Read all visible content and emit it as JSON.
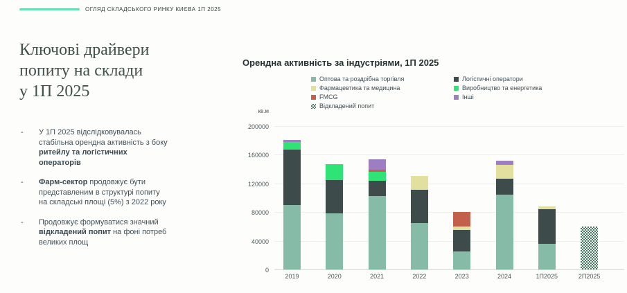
{
  "header": {
    "title": "ОГЛЯД СКЛАДСЬКОГО РИНКУ КИЄВА 1П 2025",
    "accent_line_color": "#63DFB2"
  },
  "sidebar": {
    "title_lines": [
      "Ключові драйвери",
      "попиту на склади",
      "у 1П 2025"
    ],
    "bullet_marker": "-",
    "bullets": [
      {
        "parts": [
          {
            "text": "У 1П 2025 відслідковувалась стабільна орендна активність з боку ",
            "bold": false
          },
          {
            "text": "ритейлу та логістичних операторів",
            "bold": true
          }
        ]
      },
      {
        "parts": [
          {
            "text": "Фарм-сектор",
            "bold": true
          },
          {
            "text": " продовжує бути представленим в структурі попиту на складські площі (5%) з 2022 року",
            "bold": false
          }
        ]
      },
      {
        "parts": [
          {
            "text": "Продовжує формуватися значний ",
            "bold": false
          },
          {
            "text": "відкладений попит",
            "bold": true
          },
          {
            "text": " на фоні потреб великих площ",
            "bold": false
          }
        ]
      }
    ]
  },
  "chart_data": {
    "type": "bar",
    "stacked": true,
    "title": "Орендна активність за індустріями, 1П 2025",
    "xlabel": "",
    "ylabel": "кв.м",
    "ylim": [
      0,
      200000
    ],
    "y_ticks": [
      0,
      40000,
      80000,
      120000,
      160000,
      200000
    ],
    "grid": true,
    "legend_position": "top",
    "categories": [
      "2019",
      "2020",
      "2021",
      "2022",
      "2023",
      "2024",
      "1П2025",
      "2П2025"
    ],
    "series": [
      {
        "name": "Оптова та роздрібна торгівля",
        "color": "#86BCA7",
        "pattern": false,
        "values": [
          90000,
          78000,
          102000,
          65000,
          25000,
          104000,
          36000,
          0
        ]
      },
      {
        "name": "Логістичні оператори",
        "color": "#3D4B4A",
        "pattern": false,
        "values": [
          77000,
          47000,
          22000,
          46000,
          30000,
          23000,
          48000,
          0
        ]
      },
      {
        "name": "Фармацевтика та медицина",
        "color": "#E3DF9F",
        "pattern": false,
        "values": [
          0,
          0,
          0,
          19000,
          5000,
          19000,
          4000,
          0
        ]
      },
      {
        "name": "Виробництво та енергетика",
        "color": "#2FE377",
        "pattern": false,
        "values": [
          11000,
          22000,
          12000,
          0,
          0,
          0,
          0,
          0
        ]
      },
      {
        "name": "FMCG",
        "color": "#C3604C",
        "pattern": false,
        "values": [
          0,
          0,
          3000,
          0,
          20000,
          0,
          0,
          0
        ]
      },
      {
        "name": "Інші",
        "color": "#9C7EC1",
        "pattern": false,
        "values": [
          3000,
          0,
          15000,
          0,
          0,
          6000,
          0,
          0
        ]
      },
      {
        "name": "Відкладений попит",
        "color": "#4E7A6C",
        "pattern": true,
        "values": [
          0,
          0,
          0,
          0,
          0,
          0,
          0,
          60000
        ]
      }
    ]
  }
}
